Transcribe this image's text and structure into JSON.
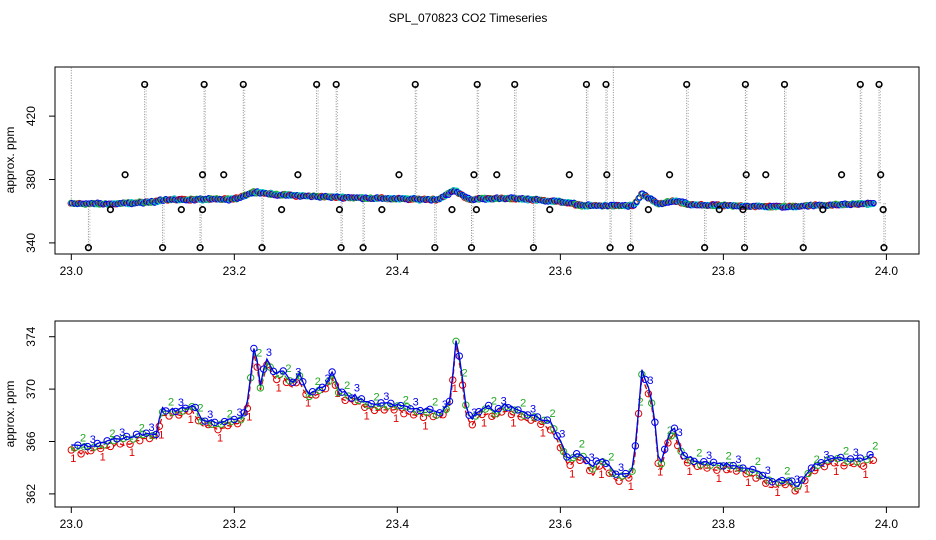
{
  "title": "SPL_070823  CO2 Timeseries",
  "colors": {
    "ch1": "#e00000",
    "ch2": "#22aa22",
    "ch3": "#0000ee",
    "ch4": "#00c8c8",
    "raw": "#888888",
    "outlier": "#000000"
  },
  "chart_data": [
    {
      "type": "scatter",
      "ylabel": "approx. ppm",
      "xlim": [
        22.98,
        24.04
      ],
      "ylim": [
        333,
        451
      ],
      "xticks": [
        23.0,
        23.2,
        23.4,
        23.6,
        23.8,
        24.0
      ],
      "xtick_labels": [
        "23.0",
        "23.2",
        "23.4",
        "23.6",
        "23.8",
        "24.0"
      ],
      "yticks": [
        340,
        380,
        420
      ],
      "ytick_labels": [
        "340",
        "380",
        "420"
      ],
      "baseline": [
        [
          23.0,
          364.8
        ],
        [
          23.05,
          364.6
        ],
        [
          23.1,
          365.8
        ],
        [
          23.11,
          367.2
        ],
        [
          23.2,
          367.6
        ],
        [
          23.225,
          372.3
        ],
        [
          23.25,
          370.5
        ],
        [
          23.3,
          369.3
        ],
        [
          23.35,
          368.5
        ],
        [
          23.4,
          367.8
        ],
        [
          23.45,
          367.4
        ],
        [
          23.47,
          373.2
        ],
        [
          23.49,
          367
        ],
        [
          23.5,
          368
        ],
        [
          23.55,
          368
        ],
        [
          23.6,
          366
        ],
        [
          23.63,
          363.5
        ],
        [
          23.69,
          363.5
        ],
        [
          23.7,
          370.8
        ],
        [
          23.72,
          364.5
        ],
        [
          23.74,
          366.5
        ],
        [
          23.76,
          364
        ],
        [
          23.85,
          363
        ],
        [
          23.88,
          362.8
        ],
        [
          23.9,
          363.5
        ],
        [
          23.95,
          364.2
        ],
        [
          23.985,
          365
        ]
      ],
      "outliers_high": [
        23.09,
        23.163,
        23.211,
        23.301,
        23.325,
        23.422,
        23.498,
        23.544,
        23.632,
        23.656,
        23.755,
        23.827,
        23.875,
        23.968,
        23.991
      ],
      "outliers_mid": [
        23.066,
        23.161,
        23.187,
        23.278,
        23.402,
        23.494,
        23.522,
        23.611,
        23.657,
        23.734,
        23.828,
        23.852,
        23.945,
        23.993
      ],
      "outliers_low": [
        23.021,
        23.112,
        23.158,
        23.234,
        23.331,
        23.358,
        23.446,
        23.491,
        23.567,
        23.661,
        23.686,
        23.777,
        23.826,
        23.898,
        23.997
      ],
      "outliers_near": [
        23.048,
        23.135,
        23.161,
        23.258,
        23.329,
        23.381,
        23.467,
        23.497,
        23.587,
        23.708,
        23.795,
        23.824,
        23.922,
        23.996
      ]
    },
    {
      "type": "line",
      "ylabel": "approx. ppm",
      "xlim": [
        22.98,
        24.04
      ],
      "ylim": [
        361,
        375.2
      ],
      "xticks": [
        23.0,
        23.2,
        23.4,
        23.6,
        23.8,
        24.0
      ],
      "xtick_labels": [
        "23.0",
        "23.2",
        "23.4",
        "23.6",
        "23.8",
        "24.0"
      ],
      "yticks": [
        362,
        366,
        370,
        374
      ],
      "ytick_labels": [
        "362",
        "366",
        "370",
        "374"
      ],
      "series_labels": [
        "1",
        "2",
        "3"
      ],
      "keypoints": [
        [
          23.0,
          365.5
        ],
        [
          23.02,
          365.4
        ],
        [
          23.05,
          365.9
        ],
        [
          23.08,
          366.3
        ],
        [
          23.105,
          366.4
        ],
        [
          23.11,
          368.3
        ],
        [
          23.13,
          368.2
        ],
        [
          23.15,
          368.6
        ],
        [
          23.16,
          367.5
        ],
        [
          23.18,
          367.2
        ],
        [
          23.21,
          367.7
        ],
        [
          23.215,
          368.4
        ],
        [
          23.225,
          373.3
        ],
        [
          23.232,
          370.2
        ],
        [
          23.24,
          372.1
        ],
        [
          23.25,
          371
        ],
        [
          23.26,
          371.2
        ],
        [
          23.27,
          370.3
        ],
        [
          23.28,
          370.9
        ],
        [
          23.29,
          369.5
        ],
        [
          23.3,
          369.8
        ],
        [
          23.31,
          370
        ],
        [
          23.32,
          371
        ],
        [
          23.33,
          369.6
        ],
        [
          23.35,
          369.2
        ],
        [
          23.37,
          368.6
        ],
        [
          23.4,
          368.7
        ],
        [
          23.42,
          368.3
        ],
        [
          23.44,
          368.2
        ],
        [
          23.455,
          368
        ],
        [
          23.465,
          369
        ],
        [
          23.472,
          373.6
        ],
        [
          23.478,
          371.5
        ],
        [
          23.485,
          368.2
        ],
        [
          23.49,
          367.5
        ],
        [
          23.5,
          368.1
        ],
        [
          23.51,
          368.5
        ],
        [
          23.52,
          368
        ],
        [
          23.53,
          368.6
        ],
        [
          23.55,
          368.1
        ],
        [
          23.57,
          367.8
        ],
        [
          23.59,
          367.2
        ],
        [
          23.6,
          365.8
        ],
        [
          23.61,
          364.4
        ],
        [
          23.625,
          365
        ],
        [
          23.64,
          363.8
        ],
        [
          23.65,
          364.6
        ],
        [
          23.66,
          363.9
        ],
        [
          23.67,
          363.2
        ],
        [
          23.685,
          363.4
        ],
        [
          23.69,
          364
        ],
        [
          23.7,
          371.1
        ],
        [
          23.705,
          370.6
        ],
        [
          23.71,
          369.5
        ],
        [
          23.715,
          368
        ],
        [
          23.72,
          364.6
        ],
        [
          23.725,
          364.2
        ],
        [
          23.73,
          366
        ],
        [
          23.74,
          366.8
        ],
        [
          23.75,
          364.8
        ],
        [
          23.77,
          364.2
        ],
        [
          23.8,
          364.1
        ],
        [
          23.82,
          363.9
        ],
        [
          23.84,
          363.6
        ],
        [
          23.86,
          362.8
        ],
        [
          23.88,
          363
        ],
        [
          23.89,
          362.2
        ],
        [
          23.9,
          363.3
        ],
        [
          23.91,
          363.9
        ],
        [
          23.93,
          364.6
        ],
        [
          23.95,
          364.5
        ],
        [
          23.97,
          364.4
        ],
        [
          23.985,
          364.8
        ]
      ]
    }
  ]
}
